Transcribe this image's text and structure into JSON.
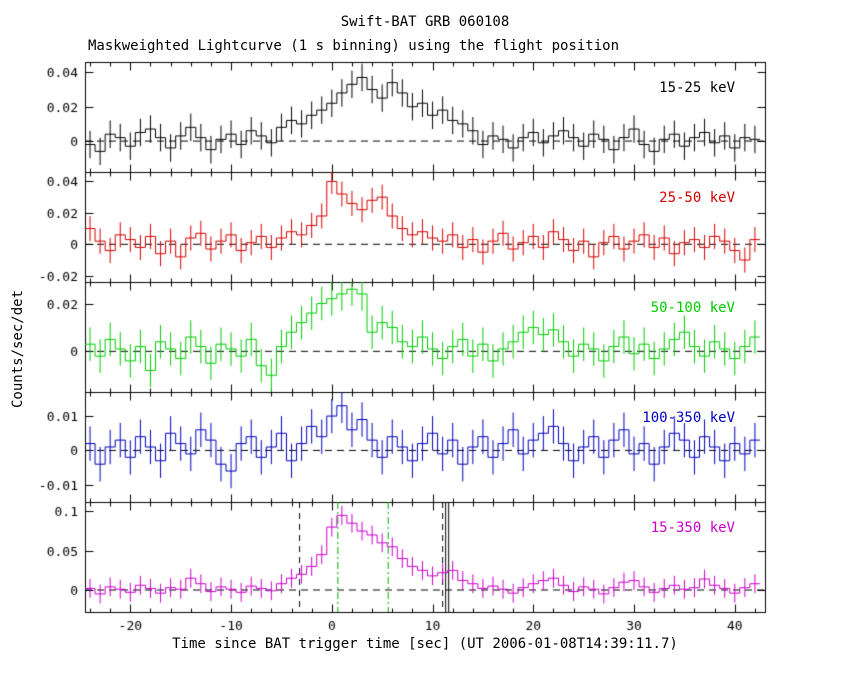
{
  "chart_data": {
    "type": "line",
    "title": "Swift-BAT GRB 060108",
    "subtitle": "Maskweighted Lightcurve (1 s binning) using the flight position",
    "xlabel": "Time since BAT trigger time [sec] (UT 2006-01-08T14:39:11.7)",
    "ylabel": "Counts/sec/det",
    "xlim": [
      -24.5,
      43
    ],
    "xticks": [
      -20,
      -10,
      0,
      10,
      20,
      30,
      40
    ],
    "xtick_minor_step": 2,
    "x_start": -24,
    "x_step": 1,
    "zero_line": {
      "style": "dashed",
      "color": "#000000"
    },
    "markers": {
      "dashed_black": [
        -3.2,
        11.0
      ],
      "solid_black": [
        11.3,
        11.6
      ],
      "dashdot_green": [
        0.6,
        5.6
      ],
      "dashdot_color": "#00aa00"
    },
    "panels": [
      {
        "label": "15-25 keV",
        "color": "#000000",
        "ylim": [
          -0.018,
          0.046
        ],
        "ytick_vals": [
          0,
          0.02,
          0.04
        ],
        "ytick_labels": [
          "0",
          "0.02",
          "0.04"
        ],
        "err": 0.008,
        "values": [
          -0.002,
          -0.006,
          0.004,
          0.002,
          -0.003,
          0.005,
          0.007,
          0.002,
          -0.004,
          0.003,
          0.008,
          0.002,
          -0.005,
          0.001,
          0.004,
          -0.002,
          0.006,
          0.003,
          -0.001,
          0.008,
          0.012,
          0.01,
          0.015,
          0.018,
          0.022,
          0.028,
          0.033,
          0.037,
          0.03,
          0.025,
          0.034,
          0.028,
          0.02,
          0.022,
          0.015,
          0.018,
          0.012,
          0.01,
          0.006,
          -0.002,
          0.003,
          0.001,
          -0.004,
          0.002,
          0.005,
          -0.001,
          0.003,
          0.006,
          0.002,
          -0.003,
          0.004,
          0.001,
          -0.005,
          0.002,
          0.007,
          -0.002,
          -0.006,
          0.001,
          0.004,
          -0.003,
          0.002,
          0.005,
          -0.001,
          0.003,
          -0.004,
          0.002,
          0.001
        ]
      },
      {
        "label": "25-50 keV",
        "color": "#d40000",
        "ylim": [
          -0.024,
          0.046
        ],
        "ytick_vals": [
          -0.02,
          0,
          0.02,
          0.04
        ],
        "ytick_labels": [
          "-0.02",
          "0",
          "0.02",
          "0.04"
        ],
        "err": 0.008,
        "values": [
          0.01,
          0.002,
          -0.004,
          0.006,
          0.003,
          -0.002,
          0.005,
          -0.006,
          0.002,
          -0.008,
          0.004,
          0.007,
          -0.003,
          0.002,
          0.006,
          -0.004,
          0.001,
          0.005,
          -0.002,
          0.004,
          0.008,
          0.006,
          0.012,
          0.018,
          0.04,
          0.032,
          0.026,
          0.022,
          0.028,
          0.03,
          0.018,
          0.01,
          0.006,
          0.008,
          0.004,
          0.002,
          0.006,
          -0.002,
          0.003,
          -0.005,
          0.002,
          0.007,
          -0.003,
          0.001,
          0.005,
          -0.002,
          0.008,
          0.003,
          -0.004,
          0.002,
          -0.008,
          0.001,
          0.005,
          -0.003,
          0.002,
          0.006,
          -0.002,
          0.004,
          -0.006,
          0.001,
          0.003,
          -0.002,
          0.005,
          0.002,
          -0.004,
          -0.01,
          0.003
        ]
      },
      {
        "label": "50-100 keV",
        "color": "#00cc00",
        "ylim": [
          -0.017,
          0.029
        ],
        "ytick_vals": [
          0,
          0.02
        ],
        "ytick_labels": [
          "0",
          "0.02"
        ],
        "err": 0.007,
        "values": [
          0.003,
          -0.002,
          0.005,
          0.001,
          -0.004,
          0.002,
          -0.008,
          0.004,
          0.001,
          -0.003,
          0.006,
          0.002,
          -0.005,
          0.003,
          0.001,
          -0.002,
          0.005,
          -0.006,
          -0.01,
          0.002,
          0.008,
          0.012,
          0.016,
          0.02,
          0.022,
          0.024,
          0.026,
          0.024,
          0.008,
          0.012,
          0.01,
          0.004,
          0.002,
          0.006,
          0.001,
          -0.003,
          0.002,
          0.005,
          -0.002,
          0.003,
          -0.004,
          0.001,
          0.004,
          0.008,
          0.01,
          0.007,
          0.009,
          0.004,
          -0.002,
          0.003,
          0.001,
          -0.004,
          0.002,
          0.006,
          -0.001,
          0.003,
          -0.003,
          0.001,
          0.005,
          0.008,
          0.002,
          -0.002,
          0.004,
          0.001,
          -0.003,
          0.002,
          0.006
        ]
      },
      {
        "label": "100-350 keV",
        "color": "#0000bb",
        "ylim": [
          -0.015,
          0.017
        ],
        "ytick_vals": [
          -0.01,
          0,
          0.01
        ],
        "ytick_labels": [
          "-0.01",
          "0",
          "0.01"
        ],
        "err": 0.005,
        "values": [
          0.002,
          -0.004,
          0.001,
          0.003,
          -0.002,
          0.004,
          0.001,
          -0.003,
          0.005,
          0.002,
          -0.001,
          0.006,
          0.003,
          -0.004,
          -0.006,
          0.002,
          0.004,
          -0.002,
          0.001,
          0.005,
          -0.003,
          0.002,
          0.007,
          0.004,
          0.01,
          0.013,
          0.006,
          0.009,
          0.003,
          -0.002,
          0.004,
          0.001,
          -0.003,
          0.002,
          0.005,
          -0.001,
          0.003,
          -0.004,
          0.001,
          0.004,
          -0.002,
          0.002,
          0.006,
          -0.001,
          0.003,
          0.005,
          0.007,
          0.002,
          -0.003,
          0.001,
          0.004,
          -0.002,
          0.003,
          0.006,
          -0.001,
          0.002,
          -0.004,
          0.001,
          0.005,
          0.003,
          -0.002,
          0.004,
          0.001,
          -0.003,
          0.002,
          -0.001,
          0.003
        ]
      },
      {
        "label": "15-350 keV",
        "color": "#cc00cc",
        "ylim": [
          -0.028,
          0.112
        ],
        "ytick_vals": [
          0,
          0.05,
          0.1
        ],
        "ytick_labels": [
          "0",
          "0.05",
          "0.1"
        ],
        "err": 0.012,
        "values": [
          0.002,
          -0.005,
          0.004,
          0.001,
          -0.003,
          0.006,
          0.002,
          -0.004,
          0.003,
          0.001,
          0.015,
          0.008,
          -0.002,
          0.004,
          0.001,
          -0.003,
          0.005,
          0.002,
          -0.001,
          0.008,
          0.015,
          0.02,
          0.03,
          0.045,
          0.08,
          0.095,
          0.085,
          0.075,
          0.07,
          0.06,
          0.055,
          0.04,
          0.03,
          0.025,
          0.018,
          0.022,
          0.025,
          0.012,
          0.008,
          0.002,
          0.005,
          0.001,
          -0.004,
          0.003,
          0.008,
          0.012,
          0.015,
          0.006,
          -0.002,
          0.004,
          0.001,
          -0.005,
          0.003,
          0.01,
          0.012,
          0.004,
          -0.003,
          0.002,
          0.006,
          0.001,
          0.003,
          0.014,
          0.006,
          0.002,
          -0.004,
          0.003,
          0.008
        ]
      }
    ]
  }
}
